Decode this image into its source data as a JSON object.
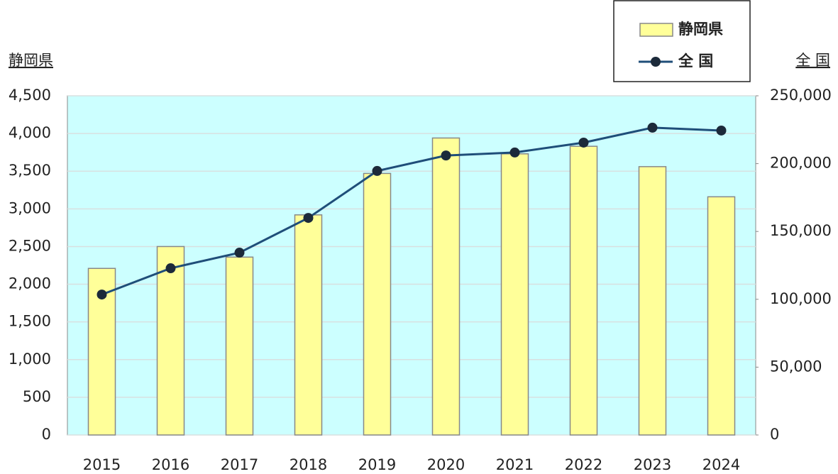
{
  "chart_data": {
    "type": "bar-line",
    "y_label": "静岡県",
    "y2_label": "全 国",
    "categories": [
      "2015",
      "2016",
      "2017",
      "2018",
      "2019",
      "2020",
      "2021",
      "2022",
      "2023",
      "2024"
    ],
    "series": [
      {
        "name": "静岡県",
        "type": "bar",
        "color": "#ffff99",
        "axis": "y",
        "values": [
          2210,
          2500,
          2360,
          2920,
          3470,
          3940,
          3730,
          3830,
          3560,
          3160
        ]
      },
      {
        "name": "全 国",
        "type": "line",
        "color": "#1f4e79",
        "marker_color": "#1c2a3a",
        "axis": "y2",
        "values": [
          103500,
          122900,
          134400,
          160000,
          194600,
          206000,
          208200,
          215500,
          226500,
          224400
        ]
      }
    ],
    "ylim": [
      0,
      4500
    ],
    "yticks": [
      0,
      500,
      {
        "value": 1000,
        "label": "1,000"
      },
      {
        "value": 1500,
        "label": "1,500"
      },
      {
        "value": 2000,
        "label": "2,000"
      },
      {
        "value": 2500,
        "label": "2,500"
      },
      {
        "value": 3000,
        "label": "3,000"
      },
      {
        "value": 3500,
        "label": "3,500"
      },
      {
        "value": 4000,
        "label": "4,000"
      },
      {
        "value": 4500,
        "label": "4,500"
      }
    ],
    "y2lim": [
      0,
      250000
    ],
    "y2ticks": [
      0,
      {
        "value": 50000,
        "label": "50,000"
      },
      {
        "value": 100000,
        "label": "100,000"
      },
      {
        "value": 150000,
        "label": "150,000"
      },
      {
        "value": 200000,
        "label": "200,000"
      },
      {
        "value": 250000,
        "label": "250,000"
      }
    ],
    "grid": true,
    "legend": "top-right",
    "plot_background": "#ccffff"
  }
}
